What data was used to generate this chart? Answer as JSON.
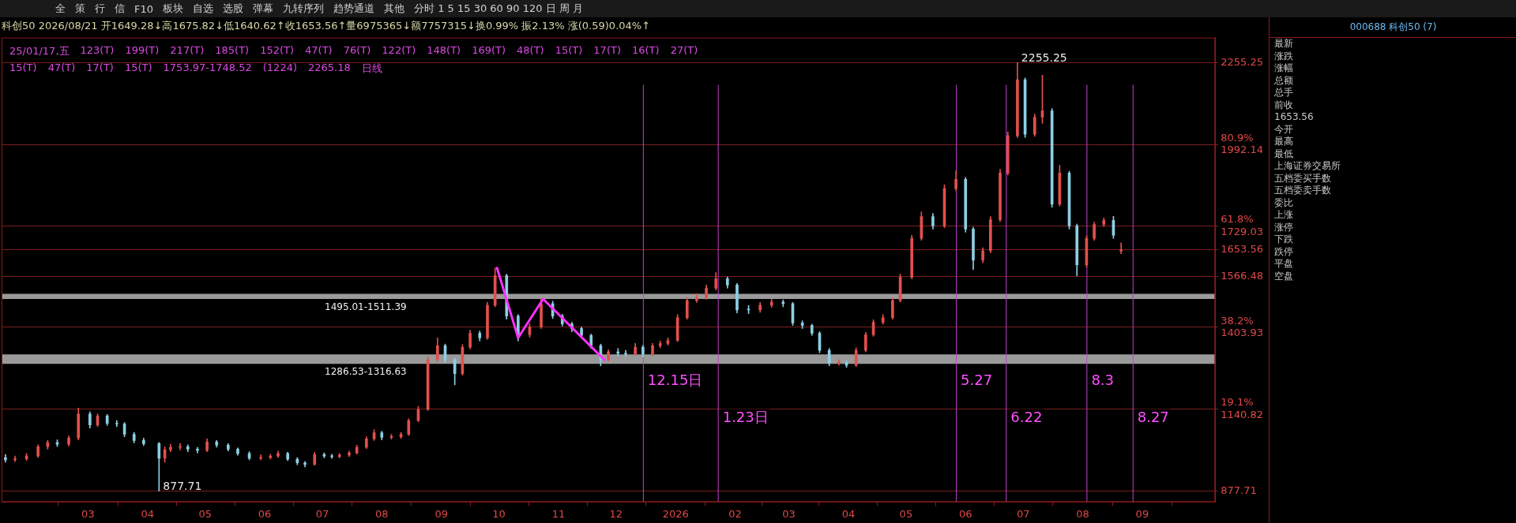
{
  "chart_data": [
    {
      "type": "other",
      "annotations": [
        "全",
        "策",
        "行",
        "信",
        "F10",
        "板块",
        "自选",
        "选股",
        "弹幕",
        "九转序列",
        "趋势通道",
        "其他",
        "分时 1 5 15 30 60 90 120 日 周 月"
      ]
    },
    {
      "type": "candlestick",
      "title": "科创50 2026/08/21 开1649.28↓高1675.82↓低1640.62↑收1653.56↑量6975365↓额7757315↓换0.99% 振2.13% 涨(0.59)0.04%↑",
      "x": [
        "2025-01-17",
        "2025-01-22",
        "2025-01-28",
        "2025-02-03",
        "2025-02-08",
        "2025-02-13",
        "2025-02-19",
        "2025-02-24",
        "2025-03-02",
        "2025-03-06",
        "2025-03-11",
        "2025-03-16",
        "2025-03-20",
        "2025-03-25",
        "2025-03-30",
        "2025-04-07",
        "2025-04-10",
        "2025-04-13",
        "2025-04-18",
        "2025-04-22",
        "2025-04-27",
        "2025-05-02",
        "2025-05-07",
        "2025-05-13",
        "2025-05-18",
        "2025-05-24",
        "2025-05-30",
        "2025-06-04",
        "2025-06-08",
        "2025-06-13",
        "2025-06-18",
        "2025-06-22",
        "2025-06-27",
        "2025-07-02",
        "2025-07-06",
        "2025-07-10",
        "2025-07-15",
        "2025-07-19",
        "2025-07-24",
        "2025-07-28",
        "2025-08-01",
        "2025-08-06",
        "2025-08-11",
        "2025-08-15",
        "2025-08-20",
        "2025-08-25",
        "2025-08-30",
        "2025-09-03",
        "2025-09-08",
        "2025-09-12",
        "2025-09-16",
        "2025-09-21",
        "2025-09-25",
        "2025-09-29",
        "2025-10-05",
        "2025-10-11",
        "2025-10-17",
        "2025-10-23",
        "2025-10-29",
        "2025-11-03",
        "2025-11-08",
        "2025-11-13",
        "2025-11-18",
        "2025-11-23",
        "2025-11-27",
        "2025-12-02",
        "2025-12-06",
        "2025-12-11",
        "2025-12-15",
        "2025-12-20",
        "2025-12-24",
        "2025-12-28",
        "2026-01-02",
        "2026-01-07",
        "2026-01-12",
        "2026-01-17",
        "2026-01-22",
        "2026-01-28",
        "2026-02-02",
        "2026-02-08",
        "2026-02-14",
        "2026-02-20",
        "2026-02-26",
        "2026-03-03",
        "2026-03-08",
        "2026-03-13",
        "2026-03-17",
        "2026-03-22",
        "2026-03-27",
        "2026-03-31",
        "2026-04-05",
        "2026-04-10",
        "2026-04-14",
        "2026-04-19",
        "2026-04-24",
        "2026-04-28",
        "2026-05-04",
        "2026-05-09",
        "2026-05-15",
        "2026-05-21",
        "2026-05-27",
        "2026-06-01",
        "2026-06-05",
        "2026-06-10",
        "2026-06-14",
        "2026-06-19",
        "2026-06-23",
        "2026-06-28",
        "2026-07-02",
        "2026-07-07",
        "2026-07-11",
        "2026-07-16",
        "2026-07-20",
        "2026-07-25",
        "2026-07-29",
        "2026-08-03",
        "2026-08-07",
        "2026-08-12",
        "2026-08-17",
        "2026-08-21"
      ],
      "ohlc": [
        [
          985,
          995,
          970,
          978
        ],
        [
          978,
          990,
          972,
          981
        ],
        [
          981,
          998,
          976,
          990
        ],
        [
          990,
          1026,
          985,
          1020
        ],
        [
          1020,
          1040,
          1012,
          1033
        ],
        [
          1033,
          1042,
          1020,
          1028
        ],
        [
          1028,
          1055,
          1022,
          1048
        ],
        [
          1048,
          1144,
          1042,
          1125
        ],
        [
          1125,
          1132,
          1080,
          1090
        ],
        [
          1090,
          1126,
          1084,
          1119
        ],
        [
          1119,
          1124,
          1088,
          1095
        ],
        [
          1095,
          1104,
          1084,
          1093
        ],
        [
          1093,
          1098,
          1052,
          1060
        ],
        [
          1060,
          1066,
          1032,
          1040
        ],
        [
          1040,
          1048,
          1024,
          1030
        ],
        [
          1030,
          1034,
          877.71,
          983
        ],
        [
          983,
          1020,
          970,
          1010
        ],
        [
          1010,
          1028,
          1004,
          1018
        ],
        [
          1018,
          1030,
          1010,
          1020
        ],
        [
          1020,
          1026,
          1004,
          1012
        ],
        [
          1012,
          1018,
          1000,
          1008
        ],
        [
          1008,
          1045,
          1004,
          1035
        ],
        [
          1035,
          1040,
          1018,
          1025
        ],
        [
          1025,
          1030,
          1006,
          1012
        ],
        [
          1012,
          1016,
          992,
          998
        ],
        [
          998,
          1004,
          978,
          983
        ],
        [
          983,
          994,
          978,
          985
        ],
        [
          985,
          996,
          980,
          990
        ],
        [
          990,
          1006,
          985,
          998
        ],
        [
          998,
          1002,
          975,
          980
        ],
        [
          980,
          985,
          962,
          968
        ],
        [
          968,
          972,
          955,
          963
        ],
        [
          963,
          1002,
          960,
          995
        ],
        [
          995,
          1000,
          984,
          990
        ],
        [
          990,
          996,
          982,
          988
        ],
        [
          988,
          998,
          984,
          993
        ],
        [
          993,
          1006,
          988,
          1000
        ],
        [
          1000,
          1025,
          996,
          1018
        ],
        [
          1018,
          1052,
          1014,
          1045
        ],
        [
          1045,
          1075,
          1040,
          1065
        ],
        [
          1065,
          1070,
          1042,
          1050
        ],
        [
          1050,
          1060,
          1044,
          1052
        ],
        [
          1052,
          1066,
          1046,
          1060
        ],
        [
          1060,
          1110,
          1056,
          1104
        ],
        [
          1104,
          1150,
          1100,
          1140
        ],
        [
          1140,
          1310,
          1136,
          1300
        ],
        [
          1300,
          1370,
          1295,
          1345
        ],
        [
          1345,
          1350,
          1290,
          1300
        ],
        [
          1300,
          1305,
          1219,
          1255
        ],
        [
          1255,
          1348,
          1250,
          1340
        ],
        [
          1340,
          1395,
          1335,
          1385
        ],
        [
          1385,
          1392,
          1360,
          1370
        ],
        [
          1370,
          1485,
          1365,
          1475
        ],
        [
          1475,
          1595,
          1470,
          1570
        ],
        [
          1570,
          1575,
          1430,
          1440
        ],
        [
          1440,
          1445,
          1360,
          1380
        ],
        [
          1380,
          1415,
          1372,
          1405
        ],
        [
          1405,
          1495,
          1400,
          1480
        ],
        [
          1480,
          1488,
          1432,
          1440
        ],
        [
          1440,
          1446,
          1408,
          1415
        ],
        [
          1415,
          1420,
          1390,
          1400
        ],
        [
          1400,
          1405,
          1370,
          1378
        ],
        [
          1378,
          1382,
          1336,
          1345
        ],
        [
          1345,
          1350,
          1280,
          1300
        ],
        [
          1300,
          1332,
          1295,
          1325
        ],
        [
          1325,
          1336,
          1312,
          1320
        ],
        [
          1320,
          1330,
          1310,
          1318
        ],
        [
          1318,
          1352,
          1314,
          1340
        ],
        [
          1340,
          1346,
          1308,
          1318
        ],
        [
          1318,
          1352,
          1314,
          1345
        ],
        [
          1345,
          1360,
          1338,
          1352
        ],
        [
          1352,
          1370,
          1346,
          1362
        ],
        [
          1362,
          1445,
          1358,
          1435
        ],
        [
          1435,
          1500,
          1430,
          1490
        ],
        [
          1490,
          1512,
          1484,
          1500
        ],
        [
          1500,
          1540,
          1494,
          1530
        ],
        [
          1530,
          1580,
          1524,
          1560
        ],
        [
          1560,
          1566,
          1530,
          1540
        ],
        [
          1540,
          1545,
          1450,
          1460
        ],
        [
          1462,
          1474,
          1448,
          1460
        ],
        [
          1460,
          1484,
          1452,
          1475
        ],
        [
          1475,
          1494,
          1468,
          1485
        ],
        [
          1485,
          1492,
          1470,
          1480
        ],
        [
          1480,
          1484,
          1410,
          1418
        ],
        [
          1418,
          1425,
          1400,
          1410
        ],
        [
          1410,
          1414,
          1378,
          1385
        ],
        [
          1385,
          1390,
          1322,
          1330
        ],
        [
          1330,
          1336,
          1280,
          1289
        ],
        [
          1289,
          1300,
          1282,
          1290
        ],
        [
          1290,
          1296,
          1275,
          1282
        ],
        [
          1282,
          1338,
          1278,
          1330
        ],
        [
          1330,
          1388,
          1325,
          1380
        ],
        [
          1380,
          1428,
          1375,
          1420
        ],
        [
          1420,
          1445,
          1414,
          1435
        ],
        [
          1435,
          1498,
          1430,
          1490
        ],
        [
          1490,
          1575,
          1485,
          1565
        ],
        [
          1565,
          1700,
          1560,
          1690
        ],
        [
          1690,
          1775,
          1684,
          1760
        ],
        [
          1760,
          1770,
          1720,
          1730
        ],
        [
          1730,
          1862,
          1724,
          1850
        ],
        [
          1850,
          1907,
          1844,
          1880
        ],
        [
          1880,
          1886,
          1710,
          1720
        ],
        [
          1720,
          1726,
          1590,
          1620
        ],
        [
          1620,
          1660,
          1612,
          1650
        ],
        [
          1650,
          1760,
          1644,
          1750
        ],
        [
          1750,
          1912,
          1744,
          1900
        ],
        [
          1900,
          2032,
          1894,
          2020
        ],
        [
          2020,
          2255.25,
          2014,
          2200
        ],
        [
          2200,
          2206,
          2015,
          2025
        ],
        [
          2025,
          2090,
          2018,
          2080
        ],
        [
          2080,
          2215,
          2060,
          2100
        ],
        [
          2100,
          2108,
          1790,
          1800
        ],
        [
          1800,
          1925,
          1794,
          1900
        ],
        [
          1900,
          1906,
          1720,
          1730
        ],
        [
          1730,
          1736,
          1570,
          1605
        ],
        [
          1605,
          1698,
          1598,
          1690
        ],
        [
          1690,
          1742,
          1684,
          1735
        ],
        [
          1735,
          1756,
          1728,
          1748
        ],
        [
          1748,
          1761,
          1690,
          1700
        ],
        [
          1649.28,
          1675.82,
          1640.62,
          1653.56
        ]
      ],
      "colors": [
        "#8ccfe3",
        "#e2504c",
        "#e2504c",
        "#e2504c",
        "#e2504c",
        "#8ccfe3",
        "#e2504c",
        "#e2504c",
        "#8ccfe3",
        "#e2504c",
        "#8ccfe3",
        "#8ccfe3",
        "#8ccfe3",
        "#8ccfe3",
        "#8ccfe3",
        "#8ccfe3",
        "#e2504c",
        "#e2504c",
        "#e2504c",
        "#8ccfe3",
        "#8ccfe3",
        "#e2504c",
        "#8ccfe3",
        "#8ccfe3",
        "#8ccfe3",
        "#8ccfe3",
        "#e2504c",
        "#e2504c",
        "#e2504c",
        "#8ccfe3",
        "#8ccfe3",
        "#8ccfe3",
        "#e2504c",
        "#8ccfe3",
        "#8ccfe3",
        "#e2504c",
        "#e2504c",
        "#e2504c",
        "#e2504c",
        "#e2504c",
        "#8ccfe3",
        "#e2504c",
        "#e2504c",
        "#e2504c",
        "#e2504c",
        "#e2504c",
        "#e2504c",
        "#8ccfe3",
        "#8ccfe3",
        "#e2504c",
        "#e2504c",
        "#8ccfe3",
        "#e2504c",
        "#e2504c",
        "#8ccfe3",
        "#8ccfe3",
        "#e2504c",
        "#e2504c",
        "#8ccfe3",
        "#8ccfe3",
        "#8ccfe3",
        "#8ccfe3",
        "#8ccfe3",
        "#8ccfe3",
        "#e2504c",
        "#8ccfe3",
        "#8ccfe3",
        "#e2504c",
        "#8ccfe3",
        "#e2504c",
        "#e2504c",
        "#e2504c",
        "#e2504c",
        "#e2504c",
        "#e2504c",
        "#e2504c",
        "#e2504c",
        "#8ccfe3",
        "#8ccfe3",
        "#8ccfe3",
        "#e2504c",
        "#e2504c",
        "#8ccfe3",
        "#8ccfe3",
        "#8ccfe3",
        "#8ccfe3",
        "#8ccfe3",
        "#8ccfe3",
        "#e2504c",
        "#8ccfe3",
        "#e2504c",
        "#e2504c",
        "#e2504c",
        "#e2504c",
        "#e2504c",
        "#e2504c",
        "#e2504c",
        "#e2504c",
        "#8ccfe3",
        "#e2504c",
        "#e2504c",
        "#8ccfe3",
        "#8ccfe3",
        "#e2504c",
        "#e2504c",
        "#e2504c",
        "#e2504c",
        "#e2504c",
        "#8ccfe3",
        "#e2504c",
        "#e2504c",
        "#8ccfe3",
        "#e2504c",
        "#8ccfe3",
        "#8ccfe3",
        "#e2504c",
        "#e2504c",
        "#e2504c",
        "#8ccfe3",
        "#e2504c"
      ],
      "series": [
        {
          "type": "line",
          "x": [
            "2025-09-30",
            "2025-10-11",
            "2025-10-24",
            "2025-11-25"
          ],
          "values": [
            1595,
            1370,
            1495,
            1299
          ],
          "color": "#ff30ff"
        }
      ],
      "xlim": [
        "2025-01-15",
        "2026-10-09"
      ],
      "xticks": [
        {
          "value": "2025-03-01",
          "label": "03"
        },
        {
          "value": "2025-04-01",
          "label": "04"
        },
        {
          "value": "2025-05-01",
          "label": "05"
        },
        {
          "value": "2025-06-01",
          "label": "06"
        },
        {
          "value": "2025-07-01",
          "label": "07"
        },
        {
          "value": "2025-08-01",
          "label": "08"
        },
        {
          "value": "2025-09-01",
          "label": "09"
        },
        {
          "value": "2025-10-01",
          "label": "10"
        },
        {
          "value": "2025-11-01",
          "label": "11"
        },
        {
          "value": "2025-12-01",
          "label": "12"
        },
        {
          "value": "2026-01-01",
          "label": "2026"
        },
        {
          "value": "2026-02-01",
          "label": "02"
        },
        {
          "value": "2026-03-01",
          "label": "03"
        },
        {
          "value": "2026-04-01",
          "label": "04"
        },
        {
          "value": "2026-05-01",
          "label": "05"
        },
        {
          "value": "2026-06-01",
          "label": "06"
        },
        {
          "value": "2026-07-01",
          "label": "07"
        },
        {
          "value": "2026-08-01",
          "label": "08"
        },
        {
          "value": "2026-09-01",
          "label": "09"
        }
      ],
      "ylim": [
        842,
        2336
      ],
      "yticks": [
        877.71,
        {
          "value": 1140.82,
          "label": "19.1%\n1140.82"
        },
        {
          "value": 1403.93,
          "label": "38.2%\n1403.93"
        },
        1566.48,
        1653.56,
        {
          "value": 1729.03,
          "label": "61.8%\n1729.03"
        },
        {
          "value": 1992.14,
          "label": "80.9%\n1992.14"
        },
        2255.25
      ],
      "ref_lines": [
        {
          "axis": "x",
          "value": "2025-12-15",
          "label": "12.15日"
        },
        {
          "axis": "x",
          "value": "2026-01-23",
          "label": "1.23日"
        },
        {
          "axis": "x",
          "value": "2026-05-27",
          "label": "5.27"
        },
        {
          "axis": "x",
          "value": "2026-06-22",
          "label": "6.22"
        },
        {
          "axis": "x",
          "value": "2026-08-03",
          "label": "8.3"
        },
        {
          "axis": "x",
          "value": "2026-08-27",
          "label": "8.27"
        }
      ],
      "grid": "y",
      "bands": [
        {
          "axis": "y",
          "from": 1495.01,
          "to": 1511.39,
          "label": "1495.01-1511.39",
          "color": "#9a9a9a"
        },
        {
          "axis": "y",
          "from": 1286.53,
          "to": 1316.63,
          "label": "1286.53-1316.63",
          "color": "#9a9a9a"
        }
      ],
      "annotations": [
        {
          "text": "2255.25",
          "x": "2026-06-28",
          "y": 2255.25
        },
        {
          "text": "877.71",
          "x": "2025-04-07",
          "y": 877.71
        },
        "25/01/17,五",
        "123(T)",
        "199(T)",
        "217(T)",
        "185(T)",
        "152(T)",
        "47(T)",
        "76(T)",
        "122(T)",
        "148(T)",
        "169(T)",
        "48(T)",
        "15(T)",
        "17(T)",
        "16(T)",
        "27(T)",
        "15(T)",
        "47(T)",
        "17(T)",
        "15(T)",
        "1753.97-1748.52",
        "(1224)",
        "2265.18",
        "日线"
      ]
    },
    {
      "type": "other",
      "title": "000688 科创50 (7)",
      "annotations": [
        "最新",
        "涨跌",
        "涨幅",
        "总额",
        "总手",
        "前收",
        "1653.56",
        "今开",
        "最高",
        "最低",
        "上海证券交易所",
        "五档委买手数",
        "五档委卖手数",
        "委比",
        "上涨",
        "涨停",
        "下跌",
        "跌停",
        "平盘",
        "空盘"
      ]
    }
  ]
}
